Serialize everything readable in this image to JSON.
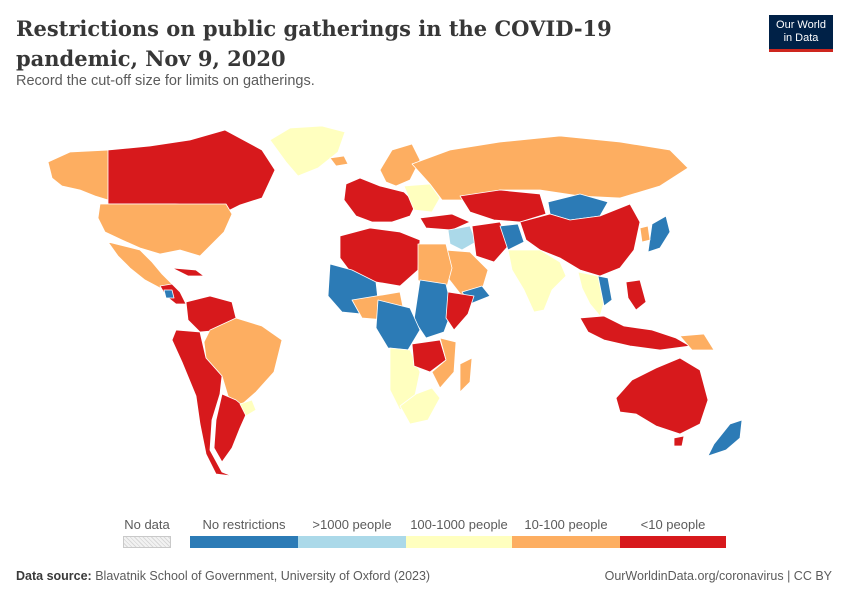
{
  "header": {
    "title": "Restrictions on public gatherings in the COVID-19 pandemic, Nov 9, 2020",
    "subtitle": "Record the cut-off size for limits on gatherings.",
    "logo_line1": "Our World",
    "logo_line2": "in Data"
  },
  "legend": {
    "no_data_label": "No data",
    "categories": [
      {
        "label": "No restrictions",
        "color": "#2c7bb6"
      },
      {
        "label": ">1000 people",
        "color": "#abd9e9"
      },
      {
        "label": "100-1000 people",
        "color": "#ffffbf"
      },
      {
        "label": "10-100 people",
        "color": "#fdae61"
      },
      {
        "label": "<10 people",
        "color": "#d7191c"
      }
    ]
  },
  "footer": {
    "source_label": "Data source:",
    "source_text": "Blavatnik School of Government, University of Oxford (2023)",
    "url": "OurWorldinData.org/coronavirus | CC BY"
  },
  "colors": {
    "no_restrictions": "#2c7bb6",
    "over_1000": "#abd9e9",
    "100_1000": "#ffffbf",
    "10_100": "#fdae61",
    "under_10": "#d7191c",
    "border": "#ffffff"
  }
}
